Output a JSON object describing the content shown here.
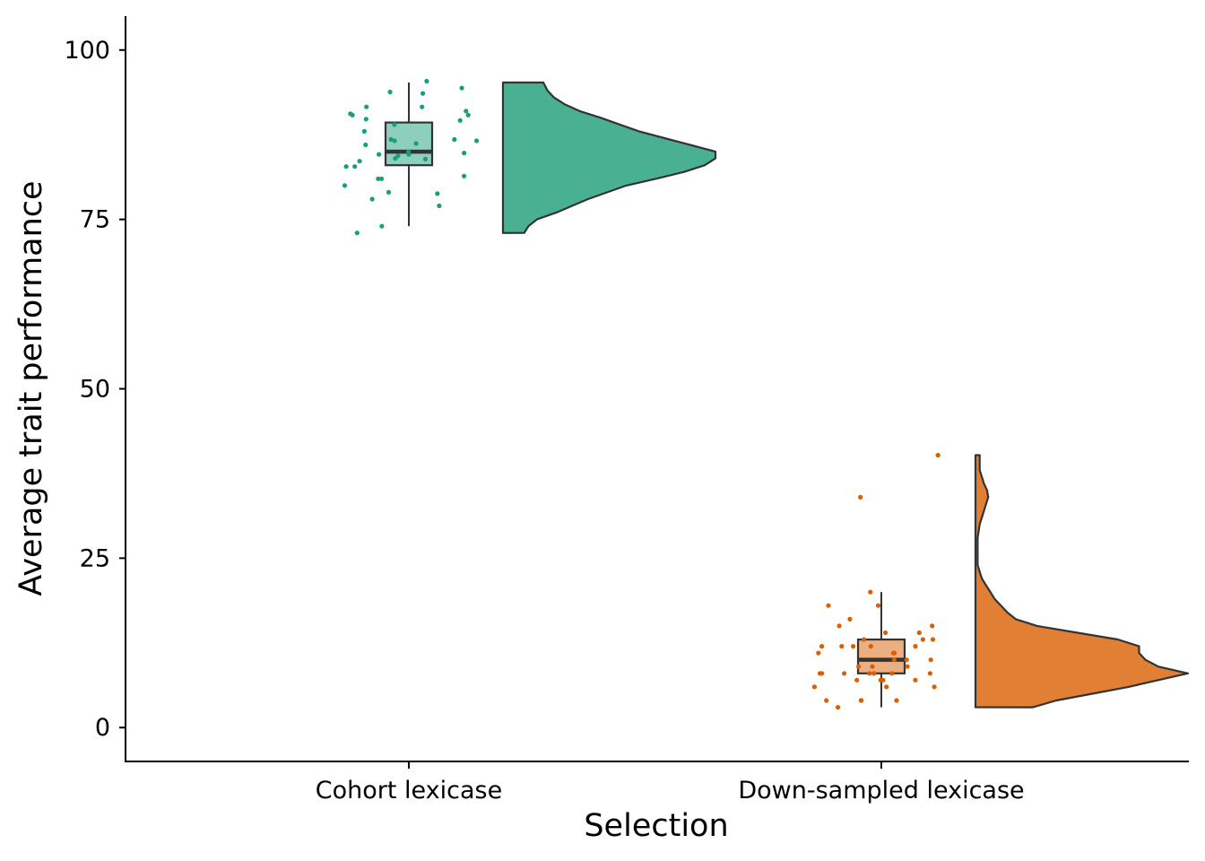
{
  "chart_data": {
    "type": "raincloud",
    "title": "",
    "xlabel": "Selection",
    "ylabel": "Average trait performance",
    "ylim": [
      -5,
      105
    ],
    "yticks": [
      0,
      25,
      50,
      75,
      100
    ],
    "grid": false,
    "legend": "none",
    "categories": [
      "Cohort lexicase",
      "Down-sampled lexicase"
    ],
    "series": [
      {
        "category": "Cohort lexicase",
        "color": "#1B9E77",
        "points": [
          94.4,
          91,
          90.6,
          89,
          84.8,
          83.6,
          86.8,
          84.6,
          83.9,
          78,
          73,
          90.4,
          86.6,
          86,
          85,
          84.6,
          82.8,
          77,
          74,
          81,
          80,
          89.6,
          91.6,
          86.8,
          84.4,
          89.8,
          86.2,
          79,
          78.8,
          93.6,
          90.4,
          88,
          84,
          82.8,
          86.6,
          93.8,
          95.4,
          91.6,
          81.4,
          81
        ],
        "box": {
          "min": 74,
          "q1": 83,
          "median": 85,
          "q3": 89.3,
          "max": 95.2
        },
        "density": [
          [
            73,
            0.1
          ],
          [
            74,
            0.12
          ],
          [
            75,
            0.16
          ],
          [
            76,
            0.25
          ],
          [
            78,
            0.4
          ],
          [
            80,
            0.58
          ],
          [
            81,
            0.72
          ],
          [
            82,
            0.85
          ],
          [
            83,
            0.95
          ],
          [
            84,
            1.0
          ],
          [
            85,
            1.0
          ],
          [
            86,
            0.88
          ],
          [
            87,
            0.76
          ],
          [
            88,
            0.64
          ],
          [
            89,
            0.55
          ],
          [
            90,
            0.46
          ],
          [
            91,
            0.36
          ],
          [
            92,
            0.29
          ],
          [
            93,
            0.24
          ],
          [
            94,
            0.21
          ],
          [
            95.2,
            0.19
          ]
        ]
      },
      {
        "category": "Down-sampled lexicase",
        "color": "#D95F02",
        "points": [
          40.2,
          34,
          20,
          18,
          18,
          14,
          13,
          8,
          7,
          8,
          8,
          7,
          4,
          4,
          3,
          11,
          10,
          8,
          6,
          6,
          8,
          7,
          12,
          12,
          12,
          13,
          10,
          10,
          9,
          9,
          16,
          12,
          12,
          15,
          15,
          13,
          14,
          11,
          11,
          8,
          8,
          7,
          4,
          4,
          6,
          9
        ],
        "box": {
          "min": 3,
          "q1": 8,
          "median": 10,
          "q3": 13,
          "max": 20
        },
        "density": [
          [
            3,
            0.27
          ],
          [
            4,
            0.38
          ],
          [
            5,
            0.55
          ],
          [
            6,
            0.72
          ],
          [
            7,
            0.86
          ],
          [
            8,
            1.0
          ],
          [
            9,
            0.86
          ],
          [
            10,
            0.8
          ],
          [
            11,
            0.77
          ],
          [
            12,
            0.77
          ],
          [
            13,
            0.67
          ],
          [
            14,
            0.48
          ],
          [
            15,
            0.29
          ],
          [
            16,
            0.19
          ],
          [
            17,
            0.15
          ],
          [
            18,
            0.12
          ],
          [
            19,
            0.09
          ],
          [
            20,
            0.07
          ],
          [
            21,
            0.05
          ],
          [
            22,
            0.03
          ],
          [
            23,
            0.02
          ],
          [
            24,
            0.01
          ],
          [
            26,
            0.01
          ],
          [
            28,
            0.01
          ],
          [
            30,
            0.02
          ],
          [
            31,
            0.03
          ],
          [
            32,
            0.04
          ],
          [
            33,
            0.05
          ],
          [
            34,
            0.06
          ],
          [
            35,
            0.055
          ],
          [
            36,
            0.04
          ],
          [
            37,
            0.03
          ],
          [
            38,
            0.02
          ],
          [
            39,
            0.02
          ],
          [
            40.2,
            0.02
          ]
        ]
      }
    ]
  }
}
